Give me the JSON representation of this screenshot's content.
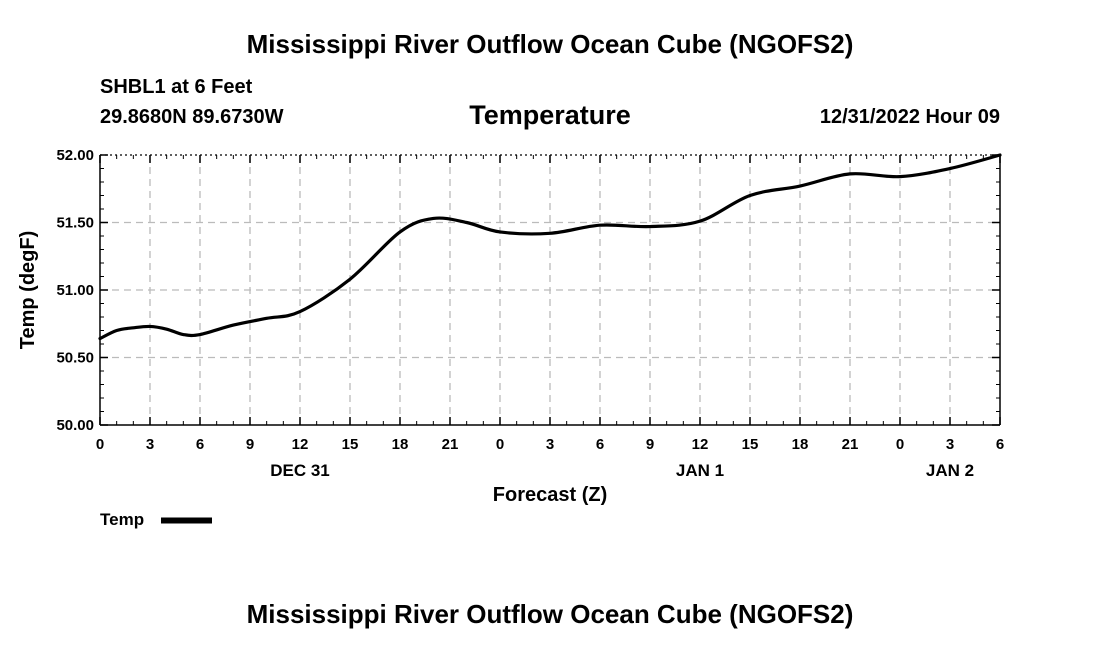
{
  "header": {
    "title": "Mississippi River Outflow Ocean Cube (NGOFS2)",
    "station": "SHBL1 at 6 Feet",
    "coordinates": "29.8680N  89.6730W",
    "subtitle": "Temperature",
    "datetime": "12/31/2022 Hour 09"
  },
  "footer": {
    "title": "Mississippi River Outflow Ocean Cube (NGOFS2)"
  },
  "chart_data": {
    "type": "line",
    "title": "Temperature",
    "xlabel": "Forecast (Z)",
    "ylabel": "Temp (degF)",
    "xlim": [
      0,
      54
    ],
    "ylim": [
      50.0,
      52.0
    ],
    "grid": true,
    "x_ticks": [
      0,
      3,
      6,
      9,
      12,
      15,
      18,
      21,
      24,
      27,
      30,
      33,
      36,
      39,
      42,
      45,
      48,
      51,
      54
    ],
    "x_tick_labels": [
      "0",
      "3",
      "6",
      "9",
      "12",
      "15",
      "18",
      "21",
      "0",
      "3",
      "6",
      "9",
      "12",
      "15",
      "18",
      "21",
      "0",
      "3",
      "6"
    ],
    "date_labels": [
      {
        "x": 12,
        "label": "DEC 31"
      },
      {
        "x": 36,
        "label": "JAN 1"
      },
      {
        "x": 51,
        "label": "JAN 2"
      }
    ],
    "y_ticks": [
      50.0,
      50.5,
      51.0,
      51.5,
      52.0
    ],
    "y_tick_labels": [
      "50.00",
      "50.50",
      "51.00",
      "51.50",
      "52.00"
    ],
    "legend": {
      "position": "bottom-left",
      "entries": [
        "Temp"
      ]
    },
    "series": [
      {
        "name": "Temp",
        "color": "#000000",
        "x": [
          0,
          1,
          2,
          3,
          4,
          5,
          6,
          8,
          10,
          12,
          15,
          18,
          20,
          22,
          24,
          27,
          30,
          33,
          36,
          39,
          42,
          45,
          48,
          51,
          54
        ],
        "values": [
          50.64,
          50.7,
          50.72,
          50.73,
          50.71,
          50.67,
          50.67,
          50.74,
          50.79,
          50.84,
          51.08,
          51.43,
          51.53,
          51.5,
          51.43,
          51.42,
          51.48,
          51.47,
          51.51,
          51.7,
          51.77,
          51.86,
          51.84,
          51.9,
          52.0
        ]
      }
    ]
  }
}
